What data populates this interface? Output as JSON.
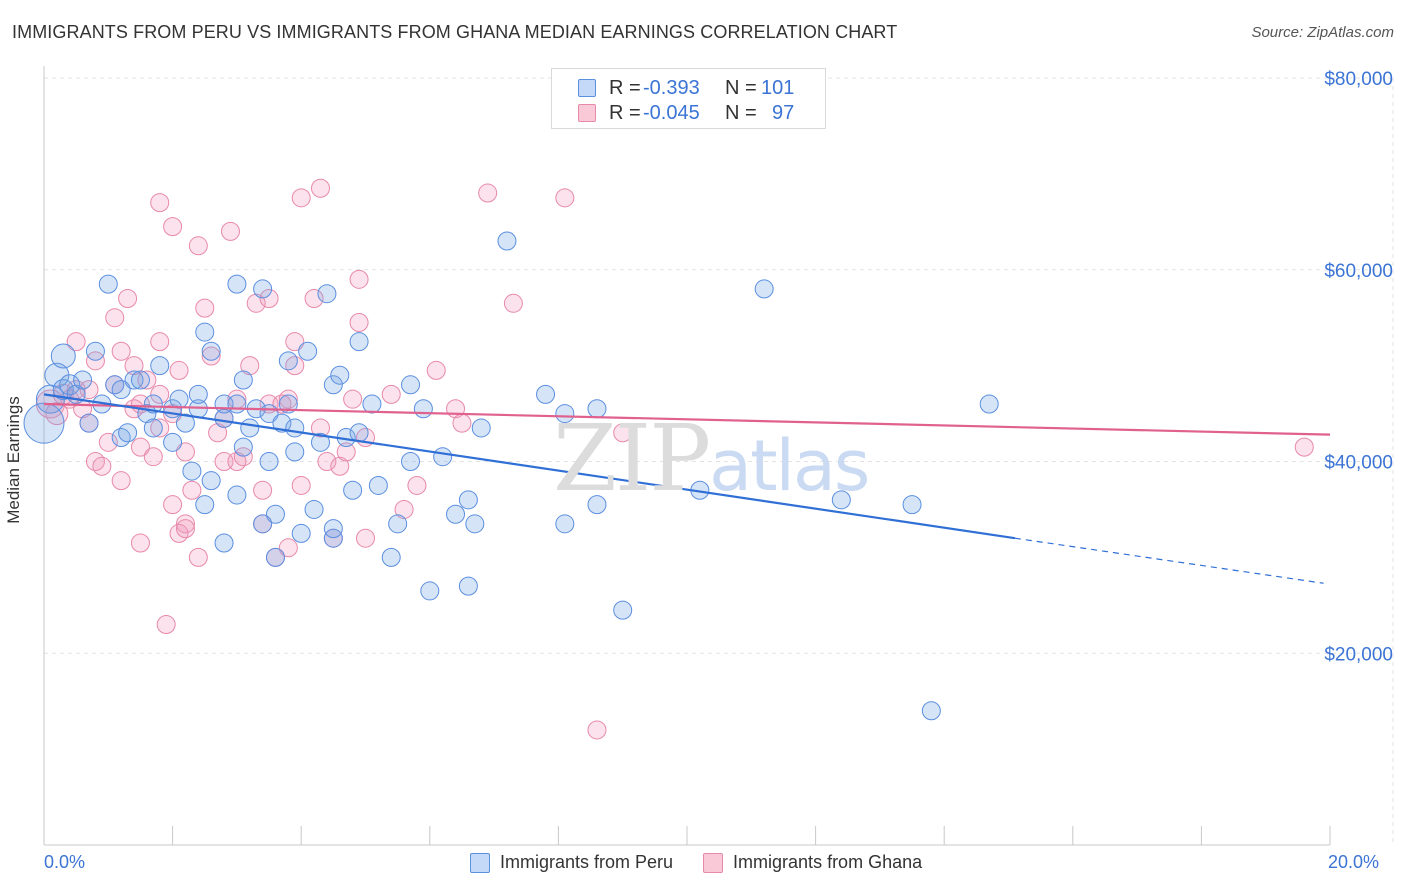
{
  "title": "IMMIGRANTS FROM PERU VS IMMIGRANTS FROM GHANA MEDIAN EARNINGS CORRELATION CHART",
  "source": "Source: ZipAtlas.com",
  "watermark": {
    "zip": "ZIP",
    "atlas": "atlas",
    "zip_color": "#dcdcdc",
    "atlas_color": "#c9daf2"
  },
  "legend": {
    "r_label": "R =",
    "n_label": "N =",
    "rows": [
      {
        "r": "-0.393",
        "n": "101",
        "fill": "#c4d9f8",
        "stroke": "#5b8fe0"
      },
      {
        "r": "-0.045",
        "n": "97",
        "fill": "#f9c9d8",
        "stroke": "#e889a9"
      }
    ]
  },
  "colors": {
    "peru_fill": "rgba(120,165,230,0.30)",
    "peru_stroke": "#5b8fe0",
    "peru_line": "#2f6fd6",
    "ghana_fill": "rgba(240,150,185,0.28)",
    "ghana_stroke": "#e889a9",
    "ghana_line": "#e0608e",
    "axis_text": "#3b74d4",
    "grid": "#e3e3e3"
  },
  "chart_data": {
    "type": "scatter",
    "title": "IMMIGRANTS FROM PERU VS IMMIGRANTS FROM GHANA MEDIAN EARNINGS CORRELATION CHART",
    "xlabel": "",
    "ylabel": "Median Earnings",
    "xlim": [
      0,
      20
    ],
    "ylim": [
      0,
      80000
    ],
    "x_tick_labels": [
      "0.0%",
      "20.0%"
    ],
    "y_ticks": [
      20000,
      40000,
      60000,
      80000
    ],
    "y_tick_labels": [
      "$20,000",
      "$40,000",
      "$60,000",
      "$80,000"
    ],
    "grid": true,
    "legend_position": "top-center",
    "series": [
      {
        "name": "Immigrants from Peru",
        "R": -0.393,
        "N": 101,
        "trend": {
          "x0": 0.0,
          "y0": 47000,
          "x1": 15.1,
          "y1": 32000,
          "dashed_to_x": 19.9,
          "dashed_to_y": 27300
        },
        "points": [
          [
            0.0,
            44000,
            20
          ],
          [
            0.1,
            46500,
            14
          ],
          [
            0.2,
            49000,
            12
          ],
          [
            0.3,
            47500,
            10
          ],
          [
            0.3,
            51000,
            12
          ],
          [
            0.4,
            48000,
            10
          ],
          [
            0.5,
            47000,
            9
          ],
          [
            0.6,
            48500,
            9
          ],
          [
            0.7,
            44000,
            9
          ],
          [
            0.8,
            51500,
            9
          ],
          [
            0.9,
            46000,
            9
          ],
          [
            1.0,
            58500,
            9
          ],
          [
            1.1,
            48000,
            9
          ],
          [
            1.2,
            47500,
            9
          ],
          [
            1.2,
            42500,
            9
          ],
          [
            1.3,
            43000,
            9
          ],
          [
            1.4,
            48500,
            9
          ],
          [
            1.5,
            48500,
            9
          ],
          [
            1.6,
            45000,
            9
          ],
          [
            1.7,
            43500,
            9
          ],
          [
            1.7,
            46000,
            9
          ],
          [
            1.8,
            50000,
            9
          ],
          [
            2.0,
            42000,
            9
          ],
          [
            2.0,
            45500,
            9
          ],
          [
            2.1,
            46500,
            9
          ],
          [
            2.2,
            44000,
            9
          ],
          [
            2.3,
            39000,
            9
          ],
          [
            2.4,
            45500,
            9
          ],
          [
            2.4,
            47000,
            9
          ],
          [
            2.5,
            35500,
            9
          ],
          [
            2.5,
            53500,
            9
          ],
          [
            2.6,
            51500,
            9
          ],
          [
            2.6,
            38000,
            9
          ],
          [
            2.8,
            44500,
            9
          ],
          [
            2.8,
            46000,
            9
          ],
          [
            2.8,
            31500,
            9
          ],
          [
            3.0,
            46000,
            9
          ],
          [
            3.0,
            36500,
            9
          ],
          [
            3.0,
            58500,
            9
          ],
          [
            3.1,
            48500,
            9
          ],
          [
            3.1,
            41500,
            9
          ],
          [
            3.2,
            43500,
            9
          ],
          [
            3.3,
            45500,
            9
          ],
          [
            3.4,
            58000,
            9
          ],
          [
            3.4,
            33500,
            9
          ],
          [
            3.5,
            45000,
            9
          ],
          [
            3.5,
            40000,
            9
          ],
          [
            3.6,
            30000,
            9
          ],
          [
            3.6,
            34500,
            9
          ],
          [
            3.7,
            44000,
            9
          ],
          [
            3.8,
            46000,
            9
          ],
          [
            3.8,
            50500,
            9
          ],
          [
            3.9,
            43500,
            9
          ],
          [
            3.9,
            41000,
            9
          ],
          [
            4.0,
            32500,
            9
          ],
          [
            4.1,
            51500,
            9
          ],
          [
            4.2,
            35000,
            9
          ],
          [
            4.3,
            42000,
            9
          ],
          [
            4.4,
            57500,
            9
          ],
          [
            4.5,
            32000,
            9
          ],
          [
            4.5,
            48000,
            9
          ],
          [
            4.5,
            33000,
            9
          ],
          [
            4.6,
            49000,
            9
          ],
          [
            4.7,
            42500,
            9
          ],
          [
            4.8,
            37000,
            9
          ],
          [
            4.9,
            43000,
            9
          ],
          [
            4.9,
            52500,
            9
          ],
          [
            5.1,
            46000,
            9
          ],
          [
            5.2,
            37500,
            9
          ],
          [
            5.4,
            30000,
            9
          ],
          [
            5.5,
            33500,
            9
          ],
          [
            5.7,
            48000,
            9
          ],
          [
            5.7,
            40000,
            9
          ],
          [
            5.9,
            45500,
            9
          ],
          [
            6.0,
            26500,
            9
          ],
          [
            6.2,
            40500,
            9
          ],
          [
            6.4,
            34500,
            9
          ],
          [
            6.6,
            36000,
            9
          ],
          [
            6.6,
            27000,
            9
          ],
          [
            6.7,
            33500,
            9
          ],
          [
            6.8,
            43500,
            9
          ],
          [
            7.2,
            63000,
            9
          ],
          [
            7.8,
            47000,
            9
          ],
          [
            8.1,
            45000,
            9
          ],
          [
            8.1,
            33500,
            9
          ],
          [
            8.6,
            35500,
            9
          ],
          [
            8.6,
            45500,
            9
          ],
          [
            9.0,
            24500,
            9
          ],
          [
            10.2,
            37000,
            9
          ],
          [
            11.2,
            58000,
            9
          ],
          [
            12.4,
            36000,
            9
          ],
          [
            13.5,
            35500,
            9
          ],
          [
            13.8,
            14000,
            9
          ],
          [
            14.7,
            46000,
            9
          ]
        ]
      },
      {
        "name": "Immigrants from Ghana",
        "R": -0.045,
        "N": 97,
        "trend": {
          "x0": 0.0,
          "y0": 46000,
          "x1": 20.0,
          "y1": 42800
        },
        "points": [
          [
            0.1,
            46000,
            14
          ],
          [
            0.2,
            45000,
            11
          ],
          [
            0.3,
            47000,
            10
          ],
          [
            0.4,
            46500,
            9
          ],
          [
            0.5,
            47500,
            9
          ],
          [
            0.5,
            52500,
            9
          ],
          [
            0.6,
            45500,
            9
          ],
          [
            0.7,
            44000,
            9
          ],
          [
            0.7,
            47500,
            9
          ],
          [
            0.8,
            50500,
            9
          ],
          [
            0.8,
            40000,
            9
          ],
          [
            0.9,
            39500,
            9
          ],
          [
            1.0,
            42000,
            9
          ],
          [
            1.1,
            48000,
            9
          ],
          [
            1.1,
            55000,
            9
          ],
          [
            1.2,
            51500,
            9
          ],
          [
            1.2,
            38000,
            9
          ],
          [
            1.3,
            57000,
            9
          ],
          [
            1.4,
            45500,
            9
          ],
          [
            1.4,
            50000,
            9
          ],
          [
            1.5,
            41500,
            9
          ],
          [
            1.5,
            46000,
            9
          ],
          [
            1.5,
            31500,
            9
          ],
          [
            1.6,
            48500,
            9
          ],
          [
            1.7,
            40500,
            9
          ],
          [
            1.8,
            47000,
            9
          ],
          [
            1.8,
            43500,
            9
          ],
          [
            1.8,
            52500,
            9
          ],
          [
            1.8,
            67000,
            9
          ],
          [
            1.9,
            23000,
            9
          ],
          [
            2.0,
            45000,
            9
          ],
          [
            2.0,
            35500,
            9
          ],
          [
            2.0,
            64500,
            9
          ],
          [
            2.1,
            49500,
            9
          ],
          [
            2.1,
            32500,
            9
          ],
          [
            2.2,
            33500,
            9
          ],
          [
            2.2,
            33000,
            9
          ],
          [
            2.2,
            41000,
            9
          ],
          [
            2.3,
            37000,
            9
          ],
          [
            2.4,
            30000,
            9
          ],
          [
            2.4,
            62500,
            9
          ],
          [
            2.5,
            56000,
            9
          ],
          [
            2.6,
            51000,
            9
          ],
          [
            2.7,
            43000,
            9
          ],
          [
            2.8,
            40000,
            9
          ],
          [
            2.8,
            44500,
            9
          ],
          [
            2.9,
            64000,
            9
          ],
          [
            3.0,
            46500,
            9
          ],
          [
            3.0,
            40000,
            9
          ],
          [
            3.1,
            40500,
            9
          ],
          [
            3.2,
            50000,
            9
          ],
          [
            3.3,
            56500,
            9
          ],
          [
            3.4,
            37000,
            9
          ],
          [
            3.4,
            33500,
            9
          ],
          [
            3.5,
            57000,
            9
          ],
          [
            3.5,
            46000,
            9
          ],
          [
            3.6,
            30000,
            9
          ],
          [
            3.7,
            46000,
            9
          ],
          [
            3.8,
            31000,
            9
          ],
          [
            3.8,
            46500,
            9
          ],
          [
            3.9,
            50000,
            9
          ],
          [
            3.9,
            52500,
            9
          ],
          [
            4.0,
            37500,
            9
          ],
          [
            4.0,
            67500,
            9
          ],
          [
            4.2,
            57000,
            9
          ],
          [
            4.3,
            43500,
            9
          ],
          [
            4.3,
            68500,
            9
          ],
          [
            4.4,
            40000,
            9
          ],
          [
            4.5,
            32000,
            9
          ],
          [
            4.6,
            39500,
            9
          ],
          [
            4.7,
            41000,
            9
          ],
          [
            4.8,
            46500,
            9
          ],
          [
            4.9,
            59000,
            9
          ],
          [
            4.9,
            54500,
            9
          ],
          [
            5.0,
            42500,
            9
          ],
          [
            5.0,
            32000,
            9
          ],
          [
            5.4,
            47000,
            9
          ],
          [
            5.6,
            35000,
            9
          ],
          [
            5.8,
            37500,
            9
          ],
          [
            6.1,
            49500,
            9
          ],
          [
            6.4,
            45500,
            9
          ],
          [
            6.5,
            44000,
            9
          ],
          [
            6.9,
            68000,
            9
          ],
          [
            7.3,
            56500,
            9
          ],
          [
            8.1,
            67500,
            9
          ],
          [
            8.6,
            12000,
            9
          ],
          [
            9.0,
            43000,
            9
          ],
          [
            19.6,
            41500,
            9
          ]
        ]
      }
    ]
  },
  "bottom_legend": [
    "Immigrants from Peru",
    "Immigrants from Ghana"
  ]
}
